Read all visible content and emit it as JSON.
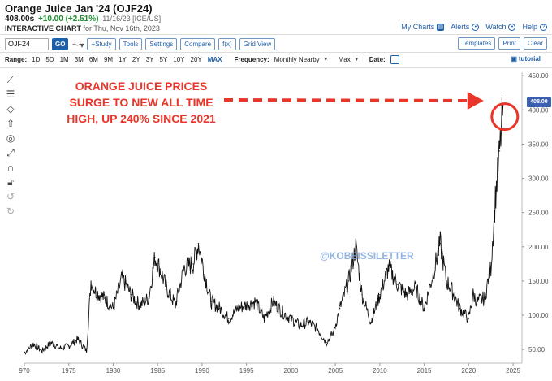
{
  "header": {
    "title": "Orange Juice Jan '24 (OJF24)",
    "price": "408.00s",
    "change": "+10.00 (+2.51%)",
    "meta": "11/16/23 [ICE/US]",
    "chart_label": "INTERACTIVE CHART",
    "chart_date": "for Thu, Nov 16th, 2023"
  },
  "top_links": {
    "my_charts": "My Charts",
    "alerts": "Alerts",
    "watch": "Watch",
    "help": "Help"
  },
  "toolbar": {
    "symbol_value": "OJF24",
    "go": "GO",
    "study": "+Study",
    "tools": "Tools",
    "settings": "Settings",
    "compare": "Compare",
    "fx": "f(x)",
    "grid_view": "Grid View",
    "templates": "Templates",
    "print": "Print",
    "clear": "Clear"
  },
  "range_bar": {
    "range_label": "Range:",
    "ranges": [
      "1D",
      "5D",
      "1M",
      "3M",
      "6M",
      "9M",
      "1Y",
      "2Y",
      "3Y",
      "5Y",
      "10Y",
      "20Y",
      "MAX"
    ],
    "selected_range": "MAX",
    "frequency_label": "Frequency:",
    "frequency_value": "Monthly Nearby",
    "aggregation_value": "Max",
    "date_label": "Date:",
    "tutorial": "tutorial"
  },
  "sidebar_icons": [
    "line-tool-icon",
    "fibonacci-icon",
    "shape-tool-icon",
    "arrow-tool-icon",
    "target-tool-icon",
    "measure-tool-icon",
    "magnet-icon",
    "lock-icon",
    "undo-icon",
    "redo-icon"
  ],
  "annotation": {
    "line1": "ORANGE JUICE PRICES",
    "line2": "SURGE TO NEW ALL TIME",
    "line3": "HIGH, UP 240% SINCE 2021",
    "watermark": "@KOBEISSILETTER",
    "current_price_tag": "408.00"
  },
  "colors": {
    "accent": "#1f5fa8",
    "change_up": "#1a8f2c",
    "annotation": "#e8362a",
    "price_tag": "#3b5fb0"
  },
  "chart_data": {
    "type": "line",
    "title": "",
    "xlabel": "",
    "ylabel": "",
    "x_ticks": [
      "970",
      "1975",
      "1980",
      "1985",
      "1990",
      "1995",
      "2000",
      "2005",
      "2010",
      "2015",
      "2020",
      "2025"
    ],
    "y_ticks": [
      "50.00",
      "100.00",
      "150.00",
      "200.00",
      "250.00",
      "300.00",
      "350.00",
      "400.00",
      "450.00"
    ],
    "xlim": [
      1970,
      2026
    ],
    "ylim": [
      30,
      455
    ],
    "grid": false,
    "series": [
      {
        "x": [
          1970.0,
          1971.0,
          1972.0,
          1973.0,
          1974.0,
          1975.0,
          1976.0,
          1977.0,
          1977.5,
          1978.0,
          1979.0,
          1980.0,
          1981.0,
          1982.0,
          1983.0,
          1984.0,
          1984.7,
          1985.2,
          1986.0,
          1987.0,
          1988.0,
          1989.0,
          1989.6,
          1990.3,
          1991.0,
          1992.0,
          1993.0,
          1994.0,
          1995.0,
          1996.0,
          1997.0,
          1998.0,
          1999.0,
          2000.0,
          2001.0,
          2002.0,
          2003.0,
          2004.0,
          2004.8,
          2005.5,
          2006.5,
          2007.3,
          2008.0,
          2009.0,
          2010.0,
          2011.0,
          2012.0,
          2013.0,
          2014.0,
          2015.0,
          2016.0,
          2016.8,
          2017.5,
          2018.0,
          2019.0,
          2020.0,
          2020.5,
          2021.0,
          2021.8,
          2022.5,
          2023.0,
          2023.5,
          2023.88
        ],
        "y": [
          45,
          58,
          48,
          60,
          52,
          55,
          65,
          48,
          150,
          135,
          125,
          110,
          155,
          130,
          115,
          125,
          185,
          170,
          140,
          115,
          170,
          175,
          205,
          160,
          120,
          110,
          95,
          110,
          115,
          120,
          95,
          120,
          105,
          95,
          85,
          90,
          80,
          60,
          75,
          110,
          150,
          200,
          130,
          90,
          130,
          170,
          145,
          130,
          140,
          110,
          160,
          205,
          150,
          140,
          110,
          95,
          130,
          120,
          125,
          170,
          270,
          340,
          408
        ]
      }
    ]
  }
}
